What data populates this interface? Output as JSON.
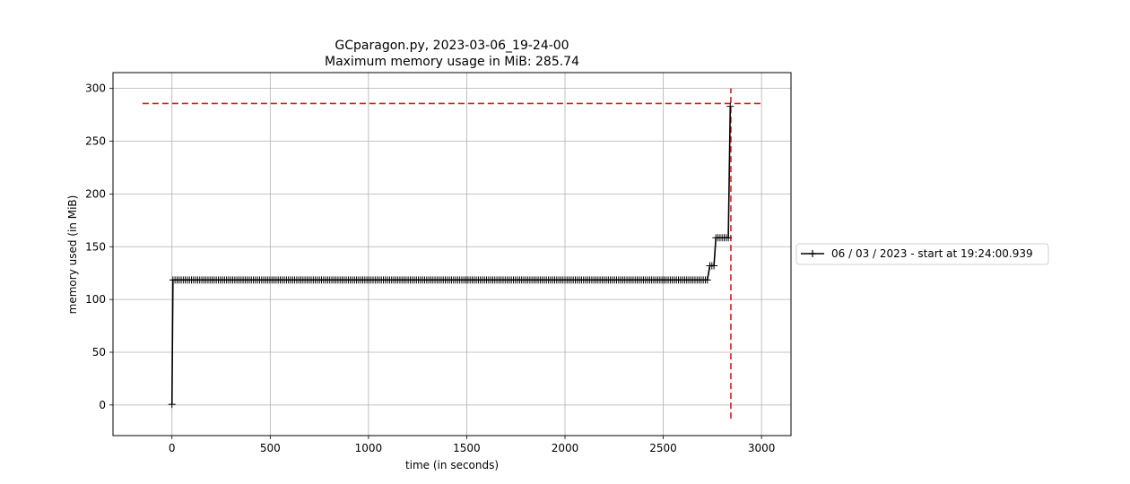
{
  "chart_data": {
    "type": "line",
    "title": "GCparagon.py, 2023-03-06_19-24-00",
    "subtitle": "Maximum memory usage in MiB: 285.74",
    "xlabel": "time (in seconds)",
    "ylabel": "memory used (in MiB)",
    "xlim": [
      -300,
      3150
    ],
    "ylim": [
      -29,
      315
    ],
    "xticks": [
      0,
      500,
      1000,
      1500,
      2000,
      2500,
      3000
    ],
    "yticks": [
      0,
      50,
      100,
      150,
      200,
      250,
      300
    ],
    "grid": true,
    "legend_position": "right, outside plot",
    "colors": {
      "series": "#000000",
      "max_markers": "#e31a1c"
    },
    "series": [
      {
        "name": "06 / 03 / 2023 - start at 19:24:00.939",
        "marker": "+",
        "segments": [
          {
            "x_start": 0,
            "x_end": 0,
            "y": 0.6
          },
          {
            "x_start": 5,
            "x_end": 2727,
            "y": 118.5
          },
          {
            "x_start": 2737,
            "x_end": 2758,
            "y": 132
          },
          {
            "x_start": 2768,
            "x_end": 2831,
            "y": 158.5
          },
          {
            "x_start": 2841,
            "x_end": 2841,
            "y": 283
          }
        ],
        "sample_interval": 10.5
      }
    ],
    "annotations": [
      {
        "type": "hline",
        "y": 285.74,
        "x_from": -150,
        "x_to": 3000,
        "style": "dashed"
      },
      {
        "type": "vline",
        "x": 2844,
        "y_from": -13,
        "y_to": 300,
        "style": "dashed"
      }
    ]
  }
}
